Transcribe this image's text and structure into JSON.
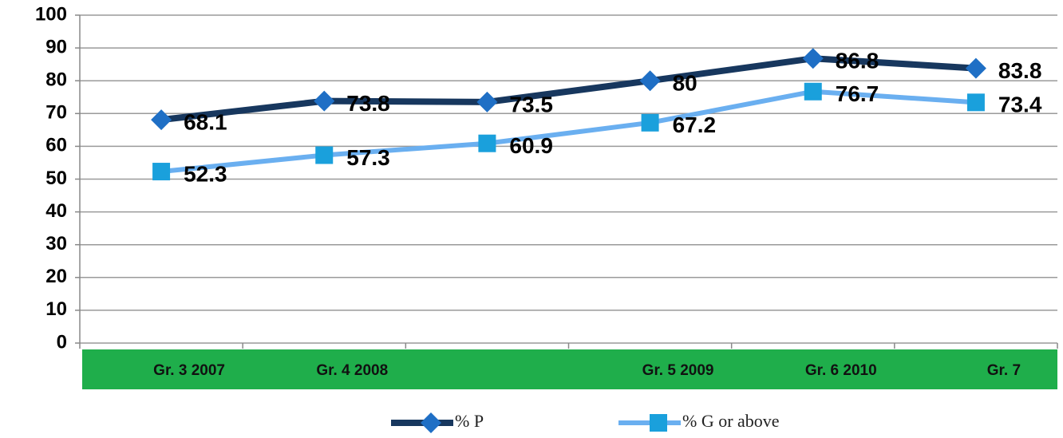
{
  "chart_data": {
    "type": "line",
    "categories": [
      "Gr. 3 2007",
      "Gr. 4 2008",
      null,
      "Gr. 5  2009",
      "Gr. 6 2010",
      "Gr. 7"
    ],
    "series": [
      {
        "name": "% P",
        "color": "#17375e",
        "marker_color": "#1f6fc5",
        "marker": "diamond",
        "values": [
          68.1,
          73.8,
          73.5,
          80,
          86.8,
          83.8
        ]
      },
      {
        "name": "% G or above",
        "color": "#6aaff0",
        "marker_color": "#1aa0dc",
        "marker": "square",
        "values": [
          52.3,
          57.3,
          60.9,
          67.2,
          76.7,
          73.4
        ]
      }
    ],
    "ylim": [
      0,
      100
    ],
    "yticks": [
      0,
      10,
      20,
      30,
      40,
      50,
      60,
      70,
      80,
      90,
      100
    ],
    "grid": true,
    "legend": "bottom",
    "category_band_color": "#1fae4b"
  }
}
